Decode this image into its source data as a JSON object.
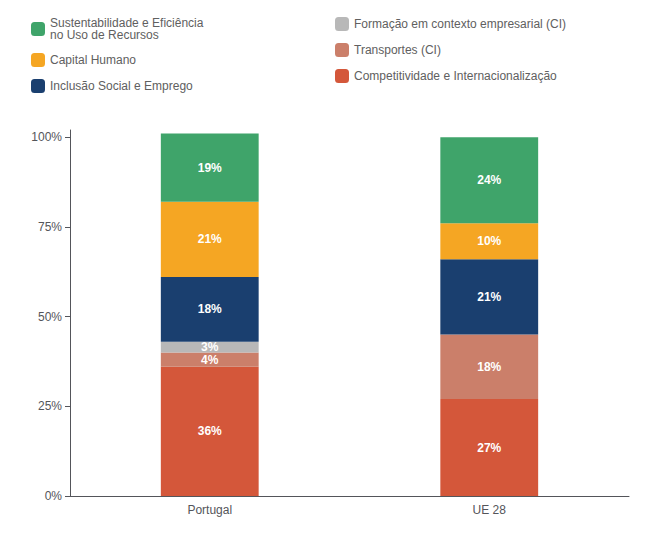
{
  "chart_data": {
    "type": "bar",
    "stacked": true,
    "categories": [
      "Portugal",
      "UE 28"
    ],
    "series": [
      {
        "name": "Competitividade e Internacionalização",
        "color": "#d4573a",
        "values": [
          36,
          27
        ],
        "value_labels": [
          "36%",
          "27%"
        ]
      },
      {
        "name": "Transportes (CI)",
        "color": "#cb7f6a",
        "values": [
          4,
          18
        ],
        "value_labels": [
          "4%",
          "18%"
        ]
      },
      {
        "name": "Formação em contexto empresarial (CI)",
        "color": "#b8b8b8",
        "values": [
          3,
          0
        ],
        "value_labels": [
          "3%",
          null
        ]
      },
      {
        "name": "Inclusão Social e Emprego",
        "color": "#1a3f6f",
        "values": [
          18,
          21
        ],
        "value_labels": [
          "18%",
          "21%"
        ]
      },
      {
        "name": "Capital Humano",
        "color": "#f5a623",
        "values": [
          21,
          10
        ],
        "value_labels": [
          "21%",
          "10%"
        ]
      },
      {
        "name": "Sustentabilidade e Eficiência\nno Uso de Recursos",
        "color": "#3fa46a",
        "values": [
          19,
          24
        ],
        "value_labels": [
          "19%",
          "24%"
        ]
      }
    ],
    "ylim": [
      0,
      102
    ],
    "yticks": [
      {
        "value": 0,
        "label": "0%"
      },
      {
        "value": 25,
        "label": "25%"
      },
      {
        "value": 50,
        "label": "50%"
      },
      {
        "value": 75,
        "label": "75%"
      },
      {
        "value": 100,
        "label": "100%"
      }
    ],
    "data_labels": true,
    "grid": false,
    "legend": "top"
  }
}
